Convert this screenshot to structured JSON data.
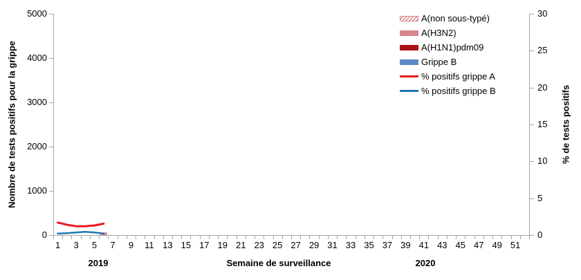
{
  "axes": {
    "left": {
      "title": "Nombre de tests positifs pour la grippe",
      "ticks": [
        0,
        1000,
        2000,
        3000,
        4000,
        5000
      ],
      "max": 5000
    },
    "right": {
      "title": "% de tests positifs",
      "ticks": [
        0,
        5,
        10,
        15,
        20,
        25,
        30
      ],
      "max": 30
    },
    "bottom": {
      "title": "Semaine de surveillance",
      "weeks_total": 52,
      "week_labels": [
        1,
        3,
        5,
        7,
        9,
        11,
        13,
        15,
        17,
        19,
        21,
        23,
        25,
        27,
        29,
        31,
        33,
        35,
        37,
        39,
        41,
        43,
        45,
        47,
        49,
        51
      ],
      "year_start": "2019",
      "year_end": "2020"
    }
  },
  "legend": [
    {
      "label": "A(non sous-typé)",
      "type": "hatched",
      "color": "#d9858d"
    },
    {
      "label": "A(H3N2)",
      "type": "solid",
      "color": "#d9858d"
    },
    {
      "label": "A(H1N1)pdm09",
      "type": "solid",
      "color": "#ab1016"
    },
    {
      "label": "Grippe B",
      "type": "solid",
      "color": "#5b8ac6"
    },
    {
      "label": "% positifs grippe A",
      "type": "line",
      "color": "#e8191f"
    },
    {
      "label": "% positifs grippe B",
      "type": "line",
      "color": "#1e78b4"
    }
  ],
  "chart_data": {
    "type": "combo (stacked bars on left axis + lines on right axis)",
    "title": "",
    "xlabel": "Semaine de surveillance",
    "ylabel_left": "Nombre de tests positifs pour la grippe",
    "ylabel_right": "% de tests positifs",
    "xlim_weeks": [
      1,
      52
    ],
    "ylim_left": [
      0,
      5000
    ],
    "ylim_right": [
      0,
      30
    ],
    "grid": false,
    "legend_position": "top-right-inside",
    "x_weeks": [
      1,
      2,
      3,
      4,
      5,
      6
    ],
    "bar_series": [
      {
        "name": "A(non sous-typé)",
        "axis": "left",
        "color": "#d9858d",
        "hatched": true,
        "values": [
          0,
          0,
          0,
          0,
          0,
          0
        ]
      },
      {
        "name": "A(H3N2)",
        "axis": "left",
        "color": "#d9858d",
        "hatched": false,
        "values": [
          0,
          0,
          0,
          0,
          0,
          60
        ]
      },
      {
        "name": "A(H1N1)pdm09",
        "axis": "left",
        "color": "#ab1016",
        "hatched": false,
        "values": [
          0,
          0,
          0,
          0,
          0,
          0
        ]
      },
      {
        "name": "Grippe B",
        "axis": "left",
        "color": "#5b8ac6",
        "hatched": false,
        "values": [
          0,
          0,
          0,
          0,
          0,
          0
        ]
      }
    ],
    "line_series": [
      {
        "name": "% positifs grippe A",
        "axis": "right",
        "color": "#e8191f",
        "width": 3,
        "values": [
          1.7,
          1.4,
          1.2,
          1.2,
          1.3,
          1.55
        ]
      },
      {
        "name": "% positifs grippe B",
        "axis": "right",
        "color": "#1e78b4",
        "width": 2.5,
        "values": [
          0.2,
          0.25,
          0.35,
          0.45,
          0.35,
          0.2
        ]
      }
    ]
  }
}
